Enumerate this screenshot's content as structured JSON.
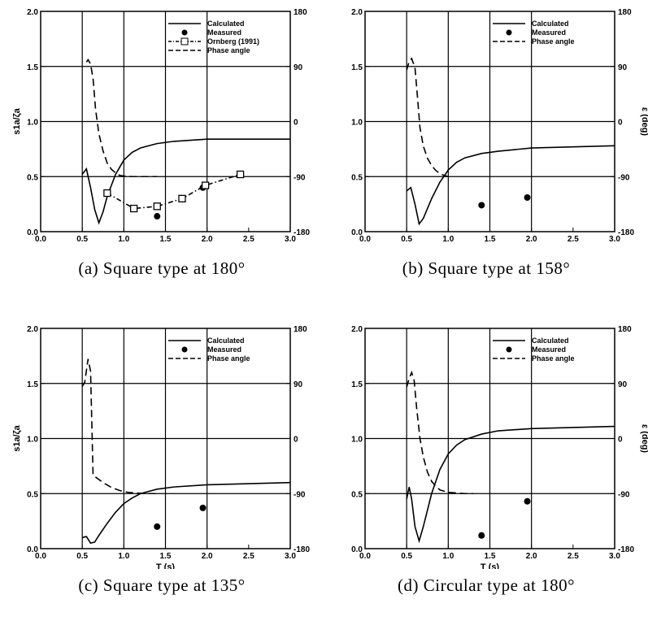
{
  "chart_data": [
    {
      "type": "line",
      "caption": "(a) Square type at 180°",
      "xlim": [
        0.0,
        3.0
      ],
      "ylim": [
        0.0,
        2.0
      ],
      "y2lim": [
        -180,
        180
      ],
      "x_ticks": [
        "0.0",
        "0.5",
        "1.0",
        "1.5",
        "2.0",
        "2.5",
        "3.0"
      ],
      "y_ticks": [
        "0.0",
        "0.5",
        "1.0",
        "1.5",
        "2.0"
      ],
      "y2_ticks": [
        "-180",
        "-90",
        "0",
        "90",
        "180"
      ],
      "xlabel": "",
      "ylabel": "s1a/ζa",
      "y2label": "",
      "grid": true,
      "legend_position": "top-right",
      "series": [
        {
          "name": "Calculated",
          "style": "solid",
          "axis": "left",
          "x": [
            0.5,
            0.55,
            0.6,
            0.65,
            0.7,
            0.75,
            0.8,
            0.9,
            1.0,
            1.1,
            1.2,
            1.4,
            1.6,
            1.8,
            2.0,
            2.5,
            3.0
          ],
          "y": [
            0.52,
            0.57,
            0.4,
            0.2,
            0.08,
            0.18,
            0.32,
            0.52,
            0.65,
            0.72,
            0.76,
            0.8,
            0.82,
            0.83,
            0.84,
            0.84,
            0.84
          ]
        },
        {
          "name": "Measured",
          "style": "dots",
          "axis": "left",
          "x": [
            1.4,
            1.95
          ],
          "y": [
            0.14,
            0.4
          ]
        },
        {
          "name": "Ornberg (1991)",
          "style": "dashdot-squares",
          "axis": "left",
          "x": [
            0.8,
            1.12,
            1.4,
            1.7,
            1.98,
            2.4
          ],
          "y": [
            0.35,
            0.21,
            0.23,
            0.3,
            0.42,
            0.52
          ]
        },
        {
          "name": "Phase angle",
          "style": "dashed",
          "axis": "right",
          "x": [
            0.55,
            0.57,
            0.6,
            0.63,
            0.66,
            0.7,
            0.75,
            0.8,
            0.85,
            0.9,
            0.95,
            1.0,
            1.1,
            1.2,
            1.3,
            1.4
          ],
          "y": [
            97,
            101,
            94,
            70,
            20,
            -20,
            -48,
            -68,
            -78,
            -84,
            -88,
            -89,
            -90,
            -90,
            -90,
            -90
          ]
        }
      ]
    },
    {
      "type": "line",
      "caption": "(b) Square type at 158°",
      "xlim": [
        0.0,
        3.0
      ],
      "ylim": [
        0.0,
        2.0
      ],
      "y2lim": [
        -180,
        180
      ],
      "x_ticks": [
        "0.0",
        "0.5",
        "1.0",
        "1.5",
        "2.0",
        "2.5",
        "3.0"
      ],
      "y_ticks": [
        "0.0",
        "0.5",
        "1.0",
        "1.5",
        "2.0"
      ],
      "y2_ticks": [
        "-180",
        "-90",
        "0",
        "90",
        "180"
      ],
      "xlabel": "",
      "ylabel": "",
      "y2label": "ε (deg)",
      "grid": true,
      "legend_position": "top-right",
      "series": [
        {
          "name": "Calculated",
          "style": "solid",
          "axis": "left",
          "x": [
            0.5,
            0.55,
            0.6,
            0.65,
            0.7,
            0.8,
            0.9,
            1.0,
            1.1,
            1.2,
            1.4,
            1.6,
            2.0,
            2.5,
            3.0
          ],
          "y": [
            0.37,
            0.4,
            0.25,
            0.07,
            0.12,
            0.3,
            0.45,
            0.56,
            0.63,
            0.67,
            0.71,
            0.73,
            0.76,
            0.77,
            0.78
          ]
        },
        {
          "name": "Measured",
          "style": "dots",
          "axis": "left",
          "x": [
            1.4,
            1.95
          ],
          "y": [
            0.24,
            0.31
          ]
        },
        {
          "name": "Phase angle",
          "style": "dashed",
          "axis": "right",
          "x": [
            0.5,
            0.53,
            0.56,
            0.6,
            0.63,
            0.66,
            0.7,
            0.75,
            0.8,
            0.85,
            0.9,
            0.95,
            1.0,
            1.05
          ],
          "y": [
            84,
            98,
            103,
            88,
            40,
            -10,
            -40,
            -60,
            -72,
            -80,
            -85,
            -88,
            -90,
            -90
          ]
        }
      ]
    },
    {
      "type": "line",
      "caption": "(c) Square type at 135°",
      "xlim": [
        0.0,
        3.0
      ],
      "ylim": [
        0.0,
        2.0
      ],
      "y2lim": [
        -180,
        180
      ],
      "x_ticks": [
        "0.0",
        "0.5",
        "1.0",
        "1.5",
        "2.0",
        "2.5",
        "3.0"
      ],
      "y_ticks": [
        "0.0",
        "0.5",
        "1.0",
        "1.5",
        "2.0"
      ],
      "y2_ticks": [
        "-180",
        "-90",
        "0",
        "90",
        "180"
      ],
      "xlabel": "T (s)",
      "ylabel": "s1a/ζa",
      "y2label": "",
      "grid": true,
      "legend_position": "top-right",
      "series": [
        {
          "name": "Calculated",
          "style": "solid",
          "axis": "left",
          "x": [
            0.5,
            0.55,
            0.6,
            0.65,
            0.7,
            0.8,
            0.9,
            1.0,
            1.1,
            1.2,
            1.4,
            1.6,
            2.0,
            2.5,
            3.0
          ],
          "y": [
            0.1,
            0.11,
            0.05,
            0.06,
            0.12,
            0.23,
            0.33,
            0.41,
            0.46,
            0.5,
            0.54,
            0.56,
            0.58,
            0.59,
            0.6
          ]
        },
        {
          "name": "Measured",
          "style": "dots",
          "axis": "left",
          "x": [
            1.4,
            1.95
          ],
          "y": [
            0.2,
            0.37
          ]
        },
        {
          "name": "Phase angle",
          "style": "dashed",
          "axis": "right",
          "x": [
            0.5,
            0.53,
            0.57,
            0.6,
            0.63,
            0.68,
            0.75,
            0.85,
            0.95,
            1.05,
            1.15,
            1.25,
            1.4
          ],
          "y": [
            85,
            92,
            130,
            110,
            -60,
            -65,
            -72,
            -80,
            -85,
            -88,
            -89,
            -90,
            -90
          ]
        }
      ]
    },
    {
      "type": "line",
      "caption": "(d) Circular type at 180°",
      "xlim": [
        0.0,
        3.0
      ],
      "ylim": [
        0.0,
        2.0
      ],
      "y2lim": [
        -180,
        180
      ],
      "x_ticks": [
        "0.0",
        "0.5",
        "1.0",
        "1.5",
        "2.0",
        "2.5",
        "3.0"
      ],
      "y_ticks": [
        "0.0",
        "0.5",
        "1.0",
        "1.5",
        "2.0"
      ],
      "y2_ticks": [
        "-180",
        "-90",
        "0",
        "90",
        "180"
      ],
      "xlabel": "T (s)",
      "ylabel": "",
      "y2label": "ε (deg)",
      "grid": true,
      "legend_position": "top-right",
      "series": [
        {
          "name": "Calculated",
          "style": "solid",
          "axis": "left",
          "x": [
            0.5,
            0.53,
            0.56,
            0.6,
            0.65,
            0.7,
            0.8,
            0.9,
            1.0,
            1.1,
            1.2,
            1.4,
            1.6,
            2.0,
            2.5,
            3.0
          ],
          "y": [
            0.45,
            0.56,
            0.45,
            0.2,
            0.07,
            0.2,
            0.5,
            0.72,
            0.86,
            0.94,
            0.99,
            1.04,
            1.07,
            1.09,
            1.1,
            1.11
          ]
        },
        {
          "name": "Measured",
          "style": "dots",
          "axis": "left",
          "x": [
            1.4,
            1.95
          ],
          "y": [
            0.12,
            0.43
          ]
        },
        {
          "name": "Phase angle",
          "style": "dashed",
          "axis": "right",
          "x": [
            0.5,
            0.53,
            0.56,
            0.59,
            0.62,
            0.66,
            0.7,
            0.75,
            0.8,
            0.85,
            0.9,
            1.0,
            1.1,
            1.2,
            1.3
          ],
          "y": [
            84,
            98,
            108,
            95,
            50,
            0,
            -30,
            -55,
            -70,
            -78,
            -84,
            -88,
            -89,
            -90,
            -90
          ]
        }
      ]
    }
  ]
}
